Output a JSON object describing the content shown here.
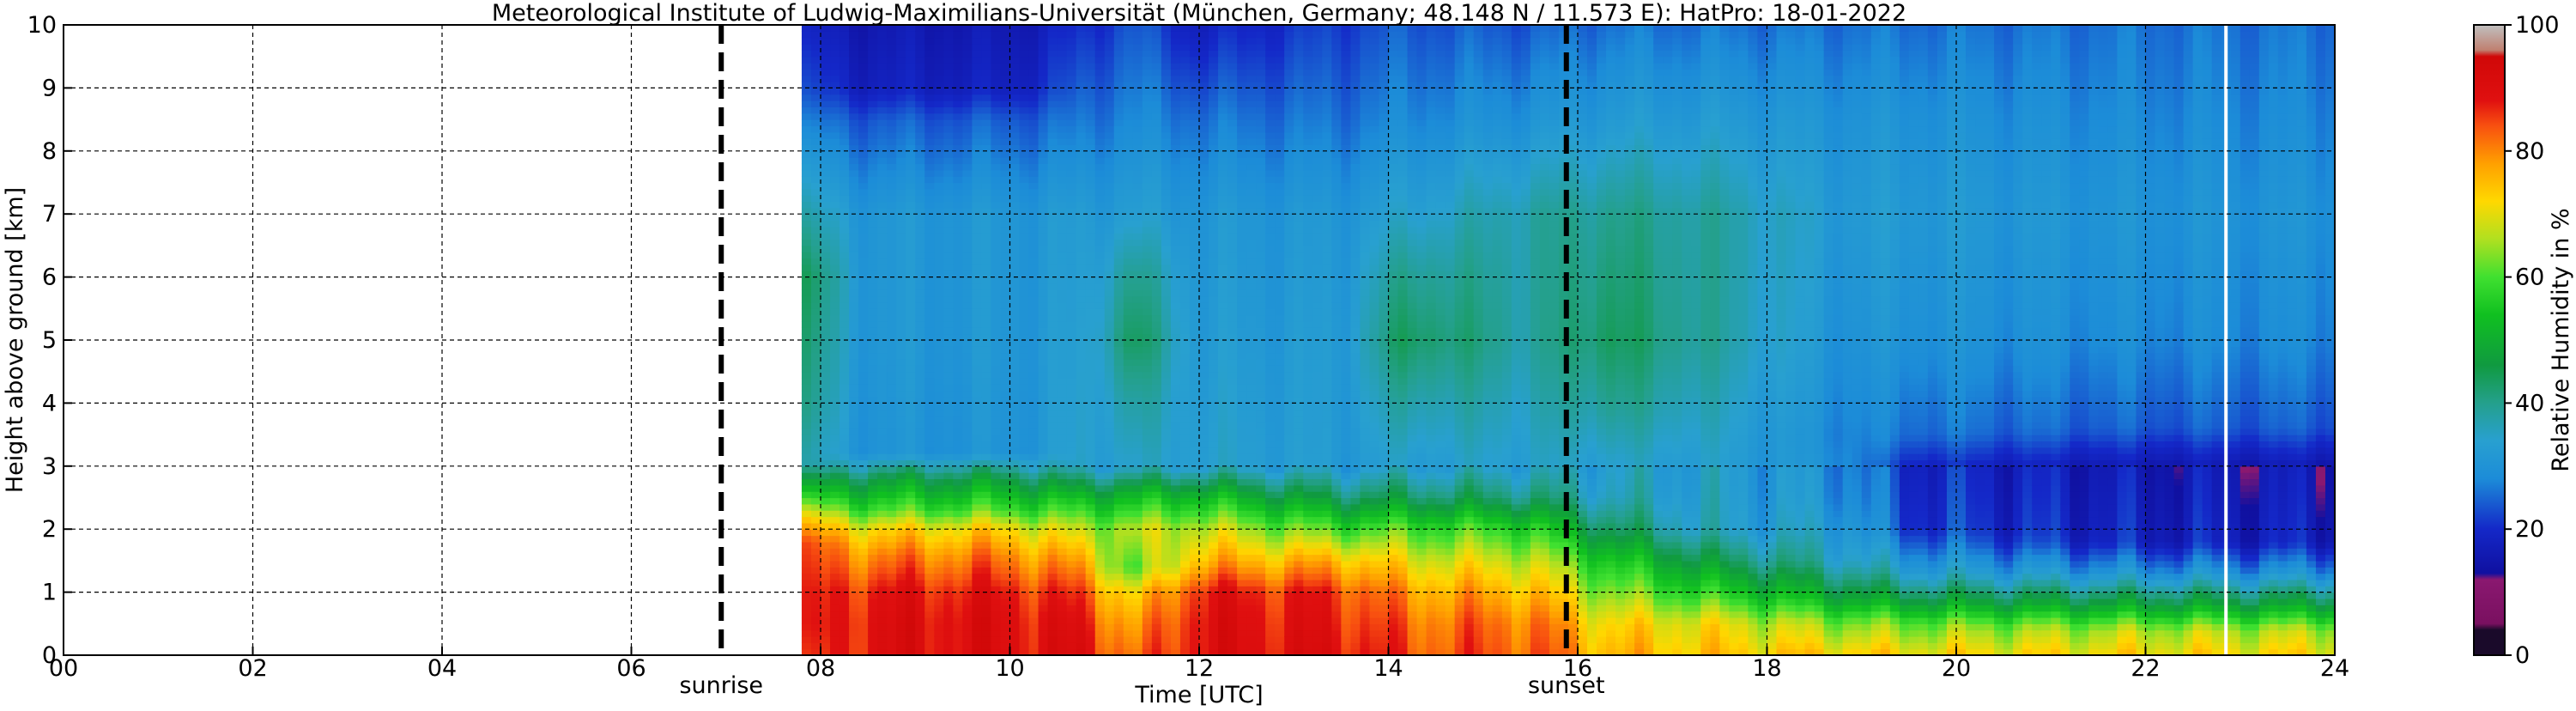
{
  "chart_data": {
    "type": "heatmap",
    "title": "Meteorological Institute of Ludwig-Maximilians-Universität (München, Germany; 48.148 N / 11.573 E):    HatPro: 18-01-2022",
    "xlabel": "Time [UTC]",
    "ylabel": "Height above ground [km]",
    "xlim": [
      0,
      24
    ],
    "ylim": [
      0,
      10
    ],
    "x_ticks": [
      {
        "value": 0,
        "label": "00"
      },
      {
        "value": 2,
        "label": "02"
      },
      {
        "value": 4,
        "label": "04"
      },
      {
        "value": 6,
        "label": "06"
      },
      {
        "value": 8,
        "label": "08"
      },
      {
        "value": 10,
        "label": "10"
      },
      {
        "value": 12,
        "label": "12"
      },
      {
        "value": 14,
        "label": "14"
      },
      {
        "value": 16,
        "label": "16"
      },
      {
        "value": 18,
        "label": "18"
      },
      {
        "value": 20,
        "label": "20"
      },
      {
        "value": 22,
        "label": "22"
      },
      {
        "value": 24,
        "label": "24"
      }
    ],
    "y_ticks": [
      {
        "value": 0,
        "label": "0"
      },
      {
        "value": 1,
        "label": "1"
      },
      {
        "value": 2,
        "label": "2"
      },
      {
        "value": 3,
        "label": "3"
      },
      {
        "value": 4,
        "label": "4"
      },
      {
        "value": 5,
        "label": "5"
      },
      {
        "value": 6,
        "label": "6"
      },
      {
        "value": 7,
        "label": "7"
      },
      {
        "value": 8,
        "label": "8"
      },
      {
        "value": 9,
        "label": "9"
      },
      {
        "value": 10,
        "label": "10"
      }
    ],
    "grid": true,
    "data_start_time": 7.8,
    "data_end_time": 24,
    "white_gap_time": 22.85,
    "markers": [
      {
        "label": "sunrise",
        "time": 6.95
      },
      {
        "label": "sunset",
        "time": 15.88
      }
    ],
    "colorbar": {
      "label": "Relative Humidity in %",
      "min": 0,
      "max": 100,
      "ticks": [
        {
          "value": 0,
          "label": "0"
        },
        {
          "value": 20,
          "label": "20"
        },
        {
          "value": 40,
          "label": "40"
        },
        {
          "value": 60,
          "label": "60"
        },
        {
          "value": 80,
          "label": "80"
        },
        {
          "value": 100,
          "label": "100"
        }
      ],
      "stops": [
        {
          "value": 0,
          "color": "#1a0a2a"
        },
        {
          "value": 4,
          "color": "#1a0a2a"
        },
        {
          "value": 5,
          "color": "#7a1060"
        },
        {
          "value": 12,
          "color": "#8a1870"
        },
        {
          "value": 13,
          "color": "#1010a0"
        },
        {
          "value": 20,
          "color": "#1428c8"
        },
        {
          "value": 28,
          "color": "#1c8cd8"
        },
        {
          "value": 34,
          "color": "#28a0d0"
        },
        {
          "value": 40,
          "color": "#24a08c"
        },
        {
          "value": 46,
          "color": "#109a40"
        },
        {
          "value": 54,
          "color": "#10c020"
        },
        {
          "value": 60,
          "color": "#40e030"
        },
        {
          "value": 66,
          "color": "#b0e020"
        },
        {
          "value": 72,
          "color": "#ffd800"
        },
        {
          "value": 78,
          "color": "#ffa000"
        },
        {
          "value": 84,
          "color": "#f85010"
        },
        {
          "value": 88,
          "color": "#e01010"
        },
        {
          "value": 95,
          "color": "#d00808"
        },
        {
          "value": 96,
          "color": "#c08070"
        },
        {
          "value": 100,
          "color": "#c0c0c0"
        }
      ]
    },
    "rh_profiles": [
      {
        "time": 7.8,
        "profile": [
          [
            0,
            82
          ],
          [
            0.5,
            84
          ],
          [
            1,
            84
          ],
          [
            1.8,
            82
          ],
          [
            2.2,
            70
          ],
          [
            2.6,
            52
          ],
          [
            3.0,
            36
          ],
          [
            4,
            40
          ],
          [
            6,
            44
          ],
          [
            8,
            30
          ],
          [
            9,
            22
          ],
          [
            10,
            18
          ]
        ]
      },
      {
        "time": 8.5,
        "profile": [
          [
            0,
            90
          ],
          [
            0.5,
            90
          ],
          [
            1,
            88
          ],
          [
            1.6,
            80
          ],
          [
            2.0,
            72
          ],
          [
            2.3,
            60
          ],
          [
            2.8,
            46
          ],
          [
            3.2,
            30
          ],
          [
            5,
            31
          ],
          [
            7,
            31
          ],
          [
            8.5,
            24
          ],
          [
            9,
            18
          ],
          [
            10,
            16
          ]
        ]
      },
      {
        "time": 10.0,
        "profile": [
          [
            0,
            90
          ],
          [
            0.5,
            90
          ],
          [
            1,
            88
          ],
          [
            1.6,
            80
          ],
          [
            2.0,
            72
          ],
          [
            2.3,
            60
          ],
          [
            2.8,
            46
          ],
          [
            3.2,
            30
          ],
          [
            5,
            31
          ],
          [
            7,
            31
          ],
          [
            8.5,
            24
          ],
          [
            9,
            18
          ],
          [
            10,
            16
          ]
        ]
      },
      {
        "time": 10.8,
        "profile": [
          [
            0,
            90
          ],
          [
            0.5,
            88
          ],
          [
            1,
            84
          ],
          [
            1.5,
            76
          ],
          [
            2.0,
            66
          ],
          [
            2.5,
            52
          ],
          [
            3.0,
            34
          ],
          [
            5,
            33
          ],
          [
            7,
            32
          ],
          [
            8.5,
            26
          ],
          [
            10,
            20
          ]
        ]
      },
      {
        "time": 11.3,
        "profile": [
          [
            0,
            80
          ],
          [
            0.5,
            76
          ],
          [
            1,
            70
          ],
          [
            1.4,
            58
          ],
          [
            2.0,
            66
          ],
          [
            2.6,
            50
          ],
          [
            3.0,
            34
          ],
          [
            4,
            38
          ],
          [
            5,
            44
          ],
          [
            6,
            40
          ],
          [
            7,
            33
          ],
          [
            8.5,
            28
          ],
          [
            10,
            24
          ]
        ]
      },
      {
        "time": 12.0,
        "profile": [
          [
            0,
            90
          ],
          [
            0.5,
            90
          ],
          [
            1,
            88
          ],
          [
            1.5,
            76
          ],
          [
            2.0,
            68
          ],
          [
            2.5,
            54
          ],
          [
            3.0,
            34
          ],
          [
            5,
            32
          ],
          [
            7,
            31
          ],
          [
            8.5,
            26
          ],
          [
            10,
            18
          ]
        ]
      },
      {
        "time": 13.5,
        "profile": [
          [
            0,
            90
          ],
          [
            0.5,
            88
          ],
          [
            1,
            86
          ],
          [
            1.5,
            76
          ],
          [
            2.0,
            60
          ],
          [
            2.5,
            44
          ],
          [
            3.0,
            32
          ],
          [
            5,
            32
          ],
          [
            7,
            31
          ],
          [
            8.5,
            26
          ],
          [
            10,
            22
          ]
        ]
      },
      {
        "time": 14.2,
        "profile": [
          [
            0,
            84
          ],
          [
            0.5,
            82
          ],
          [
            1,
            78
          ],
          [
            1.5,
            70
          ],
          [
            2.0,
            60
          ],
          [
            2.5,
            44
          ],
          [
            3.0,
            33
          ],
          [
            4,
            38
          ],
          [
            5,
            44
          ],
          [
            6,
            40
          ],
          [
            7,
            34
          ],
          [
            8.5,
            28
          ],
          [
            10,
            24
          ]
        ]
      },
      {
        "time": 15.5,
        "profile": [
          [
            0,
            84
          ],
          [
            0.5,
            82
          ],
          [
            1,
            76
          ],
          [
            1.5,
            68
          ],
          [
            2.0,
            58
          ],
          [
            2.5,
            42
          ],
          [
            3.0,
            34
          ],
          [
            5,
            38
          ],
          [
            7,
            38
          ],
          [
            8.5,
            30
          ],
          [
            10,
            24
          ]
        ]
      },
      {
        "time": 16.3,
        "profile": [
          [
            0,
            76
          ],
          [
            0.5,
            72
          ],
          [
            1,
            64
          ],
          [
            1.5,
            56
          ],
          [
            2.0,
            44
          ],
          [
            2.5,
            36
          ],
          [
            3.0,
            34
          ],
          [
            4,
            40
          ],
          [
            5,
            44
          ],
          [
            6,
            42
          ],
          [
            7,
            40
          ],
          [
            8.5,
            32
          ],
          [
            10,
            26
          ]
        ]
      },
      {
        "time": 17.5,
        "profile": [
          [
            0,
            74
          ],
          [
            0.5,
            70
          ],
          [
            1,
            56
          ],
          [
            1.5,
            44
          ],
          [
            2.0,
            34
          ],
          [
            3.0,
            33
          ],
          [
            5,
            38
          ],
          [
            7,
            38
          ],
          [
            8.5,
            32
          ],
          [
            10,
            26
          ]
        ]
      },
      {
        "time": 18.8,
        "profile": [
          [
            0,
            74
          ],
          [
            0.5,
            64
          ],
          [
            0.9,
            50
          ],
          [
            1.5,
            36
          ],
          [
            2.5,
            30
          ],
          [
            3.5,
            28
          ],
          [
            5,
            30
          ],
          [
            7,
            32
          ],
          [
            8.5,
            30
          ],
          [
            10,
            26
          ]
        ]
      },
      {
        "time": 19.5,
        "profile": [
          [
            0,
            72
          ],
          [
            0.5,
            62
          ],
          [
            0.9,
            46
          ],
          [
            1.3,
            34
          ],
          [
            2.0,
            22
          ],
          [
            3.0,
            20
          ],
          [
            3.5,
            26
          ],
          [
            5,
            30
          ],
          [
            7,
            32
          ],
          [
            8.5,
            30
          ],
          [
            10,
            26
          ]
        ]
      },
      {
        "time": 22.0,
        "profile": [
          [
            0,
            72
          ],
          [
            0.4,
            66
          ],
          [
            0.8,
            48
          ],
          [
            1.3,
            30
          ],
          [
            1.8,
            18
          ],
          [
            3.0,
            16
          ],
          [
            3.6,
            24
          ],
          [
            5,
            28
          ],
          [
            7,
            30
          ],
          [
            8.5,
            28
          ],
          [
            10,
            26
          ]
        ]
      },
      {
        "time": 24.0,
        "profile": [
          [
            0,
            72
          ],
          [
            0.4,
            66
          ],
          [
            0.8,
            48
          ],
          [
            1.3,
            30
          ],
          [
            1.8,
            18
          ],
          [
            3.0,
            16
          ],
          [
            3.6,
            24
          ],
          [
            5,
            28
          ],
          [
            7,
            30
          ],
          [
            8.5,
            28
          ],
          [
            10,
            26
          ]
        ]
      }
    ]
  }
}
